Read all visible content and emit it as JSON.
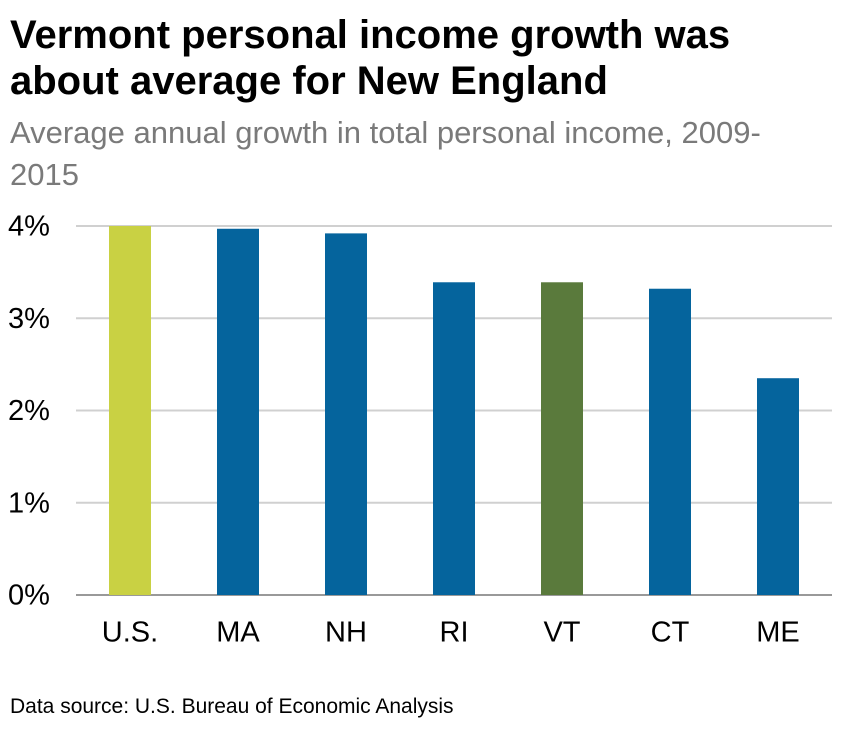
{
  "chart_data": {
    "type": "bar",
    "title": "Vermont personal income growth was about average for New England",
    "subtitle": "Average annual growth in total personal income, 2009-2015",
    "source": "Data source: U.S. Bureau of Economic Analysis",
    "categories": [
      "U.S.",
      "MA",
      "NH",
      "RI",
      "VT",
      "CT",
      "ME"
    ],
    "values": [
      4.0,
      3.97,
      3.92,
      3.39,
      3.39,
      3.32,
      2.35
    ],
    "colors": [
      "#c9d143",
      "#05649d",
      "#05649d",
      "#05649d",
      "#5a7a3c",
      "#05649d",
      "#05649d"
    ],
    "ylim": [
      0,
      4
    ],
    "yticks": [
      {
        "value": 0,
        "label": "0%"
      },
      {
        "value": 1,
        "label": "1%"
      },
      {
        "value": 2,
        "label": "2%"
      },
      {
        "value": 3,
        "label": "3%"
      },
      {
        "value": 4,
        "label": "4%"
      }
    ],
    "grid": true
  }
}
